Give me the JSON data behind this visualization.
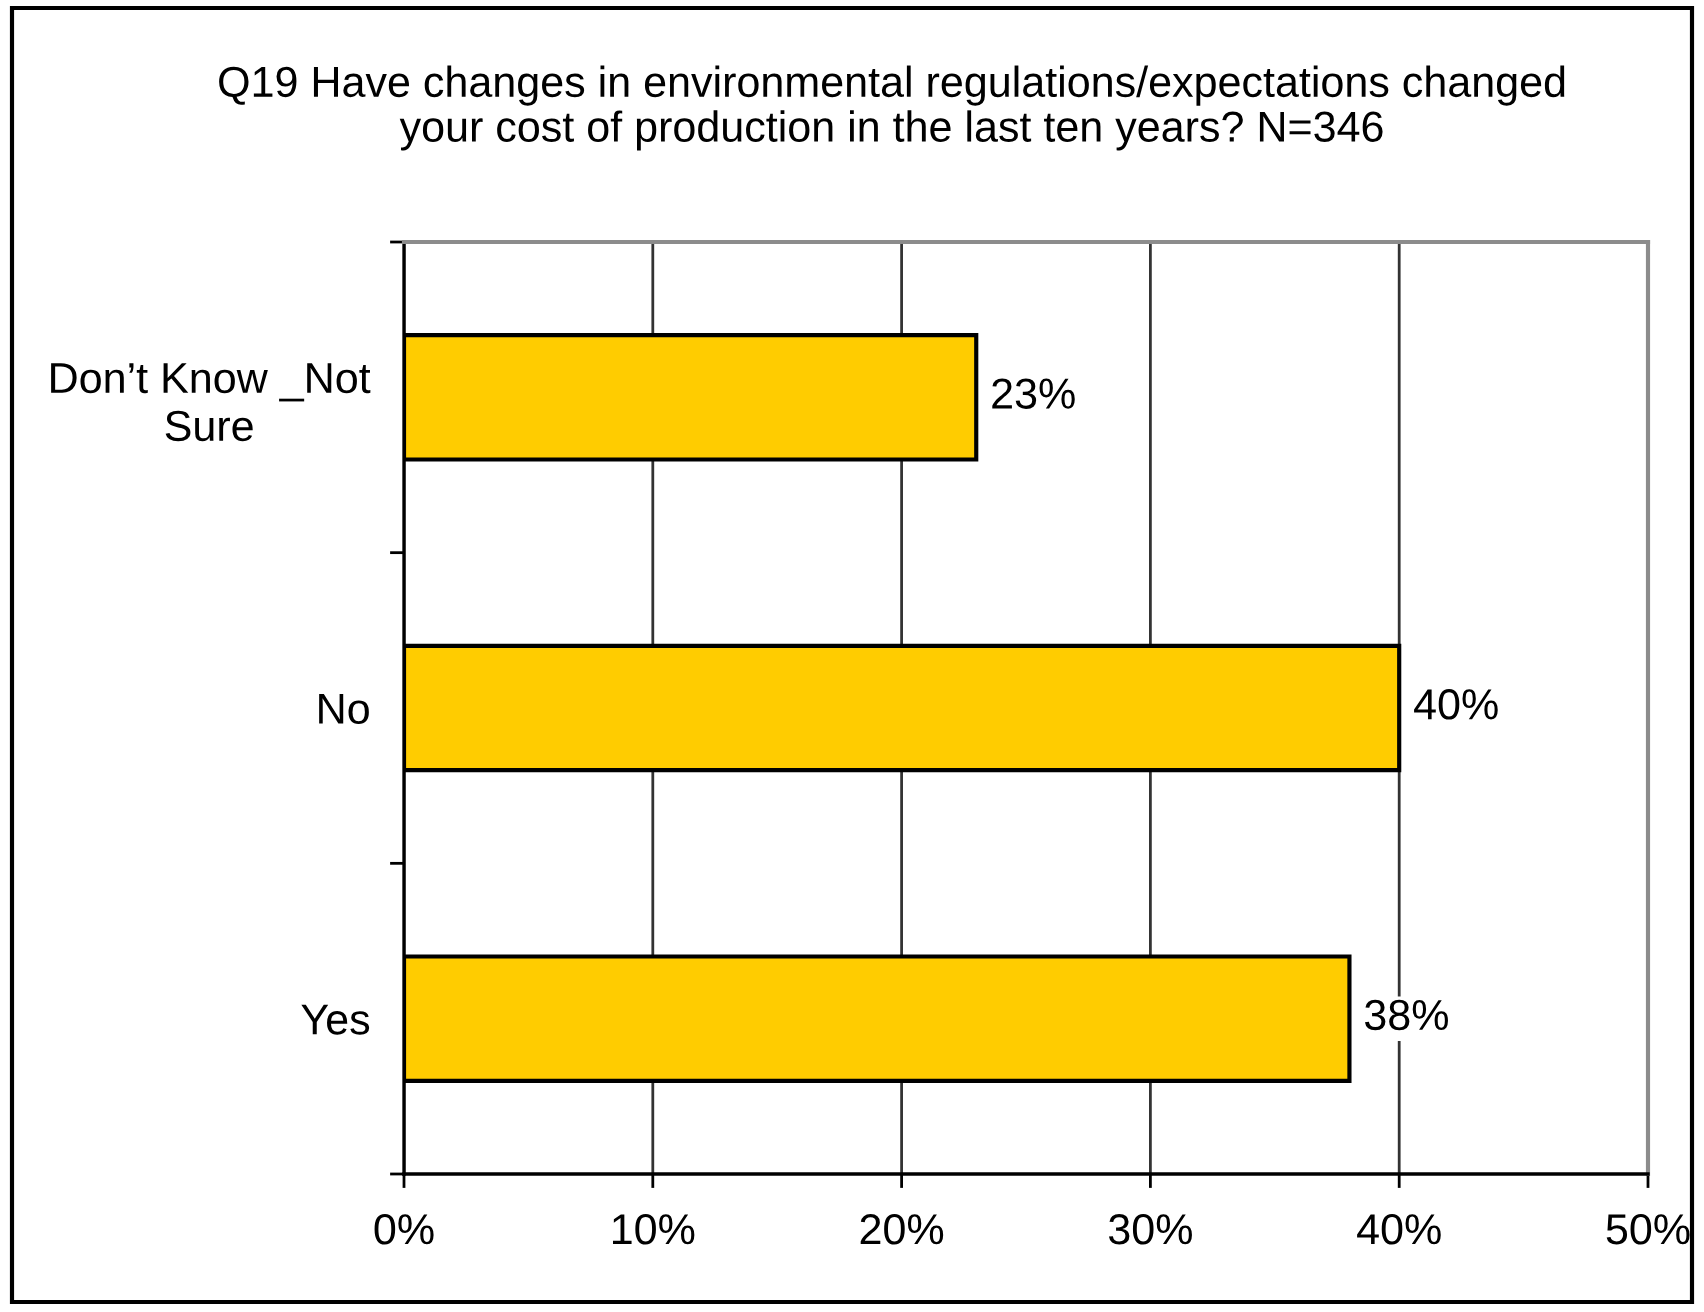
{
  "chart_data": {
    "type": "bar",
    "orientation": "horizontal",
    "title": "Q19 Have changes in environmental regulations/expectations changed\nyour cost of production in the last ten years? N=346",
    "categories": [
      "Don’t Know _Not\nSure",
      "No",
      "Yes"
    ],
    "values": [
      23,
      40,
      38
    ],
    "value_labels": [
      "23%",
      "40%",
      "38%"
    ],
    "color": "#ffcc00",
    "xlim": [
      0,
      50
    ],
    "xticks": [
      {
        "value": 0,
        "label": "0%"
      },
      {
        "value": 10,
        "label": "10%"
      },
      {
        "value": 20,
        "label": "20%"
      },
      {
        "value": 30,
        "label": "30%"
      },
      {
        "value": 40,
        "label": "40%"
      },
      {
        "value": 50,
        "label": "50%"
      }
    ],
    "grid": "x"
  }
}
